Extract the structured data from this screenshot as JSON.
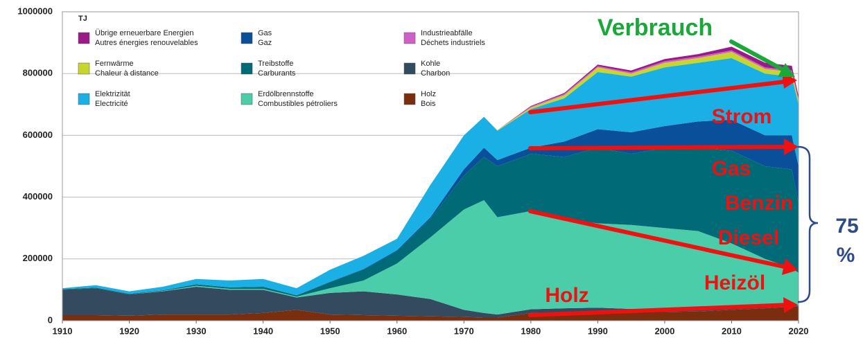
{
  "chart_data": {
    "type": "stacked_area",
    "y_label": "TJ",
    "x": [
      1910,
      1915,
      1920,
      1925,
      1930,
      1935,
      1940,
      1945,
      1950,
      1955,
      1960,
      1965,
      1970,
      1973,
      1975,
      1980,
      1985,
      1990,
      1995,
      2000,
      2005,
      2010,
      2015,
      2019,
      2020
    ],
    "xlim": [
      1910,
      2020
    ],
    "xticks": [
      1910,
      1920,
      1930,
      1940,
      1950,
      1960,
      1970,
      1980,
      1990,
      2000,
      2010,
      2020
    ],
    "ylim": [
      0,
      1000000
    ],
    "yticks": [
      0,
      200000,
      400000,
      600000,
      800000,
      1000000
    ],
    "grid": true,
    "series": [
      {
        "name": "Holz",
        "name_fr": "Bois",
        "color": "#7a2e0e",
        "values": [
          18000,
          18000,
          16000,
          20000,
          20000,
          20000,
          25000,
          35000,
          20000,
          18000,
          16000,
          14000,
          12000,
          10000,
          10000,
          25000,
          26000,
          28000,
          28000,
          28000,
          30000,
          35000,
          40000,
          45000,
          45000
        ]
      },
      {
        "name": "Kohle",
        "name_fr": "Charbon",
        "color": "#344a5e",
        "values": [
          82000,
          87000,
          69000,
          75000,
          90000,
          80000,
          75000,
          40000,
          70000,
          77000,
          69000,
          56000,
          23000,
          15000,
          10000,
          12000,
          14000,
          14000,
          10000,
          6000,
          6000,
          6000,
          5000,
          4000,
          4000
        ]
      },
      {
        "name": "Erdölbrennstoffe",
        "name_fr": "Combustibles pétroliers",
        "color": "#4ccdaa",
        "values": [
          0,
          0,
          0,
          1000,
          3000,
          3000,
          3000,
          3000,
          15000,
          35000,
          100000,
          200000,
          325000,
          365000,
          315000,
          318000,
          290000,
          273000,
          272000,
          266000,
          254000,
          209000,
          155000,
          121000,
          106000
        ]
      },
      {
        "name": "Treibstoffe",
        "name_fr": "Carburants",
        "color": "#006b77",
        "values": [
          2000,
          2000,
          2000,
          2000,
          5000,
          5000,
          7000,
          4000,
          20000,
          35000,
          40000,
          60000,
          110000,
          140000,
          165000,
          185000,
          200000,
          245000,
          230000,
          260000,
          270000,
          300000,
          300000,
          320000,
          225000
        ]
      },
      {
        "name": "Gas",
        "name_fr": "Gaz",
        "color": "#0a4f9a",
        "values": [
          0,
          0,
          0,
          0,
          0,
          0,
          0,
          0,
          1000,
          2000,
          3000,
          5000,
          20000,
          30000,
          20000,
          20000,
          50000,
          60000,
          70000,
          70000,
          85000,
          100000,
          100000,
          110000,
          120000
        ]
      },
      {
        "name": "Elektrizität",
        "name_fr": "Electricité",
        "color": "#1ab0e6",
        "values": [
          3000,
          8000,
          8000,
          12000,
          17000,
          22000,
          25000,
          23000,
          39000,
          43000,
          37000,
          105000,
          110000,
          100000,
          95000,
          125000,
          140000,
          185000,
          180000,
          190000,
          190000,
          200000,
          200000,
          190000,
          200000
        ]
      },
      {
        "name": "Fernwärme",
        "name_fr": "Chaleur à distance",
        "color": "#c7d62a",
        "values": [
          0,
          0,
          0,
          0,
          0,
          0,
          0,
          0,
          0,
          0,
          0,
          0,
          0,
          0,
          2000,
          5000,
          10000,
          15000,
          10000,
          15000,
          15000,
          20000,
          15000,
          15000,
          12000
        ]
      },
      {
        "name": "Industrieabfälle",
        "name_fr": "Déchets industriels",
        "color": "#d15fc8",
        "values": [
          0,
          0,
          0,
          0,
          0,
          0,
          0,
          0,
          0,
          0,
          0,
          0,
          0,
          0,
          0,
          3000,
          4000,
          4000,
          4000,
          5000,
          5000,
          5000,
          5000,
          5000,
          5000
        ]
      },
      {
        "name": "Übrige erneuerbare Energien",
        "name_fr": "Autres énergies renouvelables",
        "color": "#9a1a8a",
        "values": [
          0,
          0,
          0,
          0,
          0,
          0,
          0,
          0,
          0,
          0,
          0,
          0,
          0,
          0,
          0,
          2000,
          3000,
          5000,
          6000,
          7000,
          8000,
          12000,
          15000,
          15000,
          10000
        ]
      }
    ],
    "annotations": [
      "Verbrauch",
      "Strom",
      "Gas",
      "Benzin",
      "Diesel",
      "Heizöl",
      "Holz",
      "75",
      "%"
    ]
  }
}
